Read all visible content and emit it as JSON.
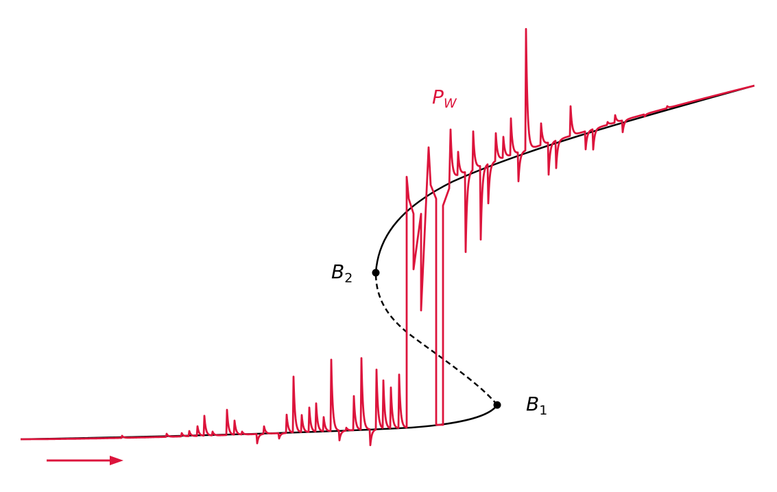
{
  "labels": {
    "trace_main": "P",
    "trace_sub": "W",
    "b2_main": "B",
    "b2_sub": "2",
    "b1_main": "B",
    "b1_sub": "1"
  },
  "colors": {
    "trace": "#dc143c",
    "curve": "#000000"
  },
  "legend": {
    "arrow_direction": "right"
  }
}
